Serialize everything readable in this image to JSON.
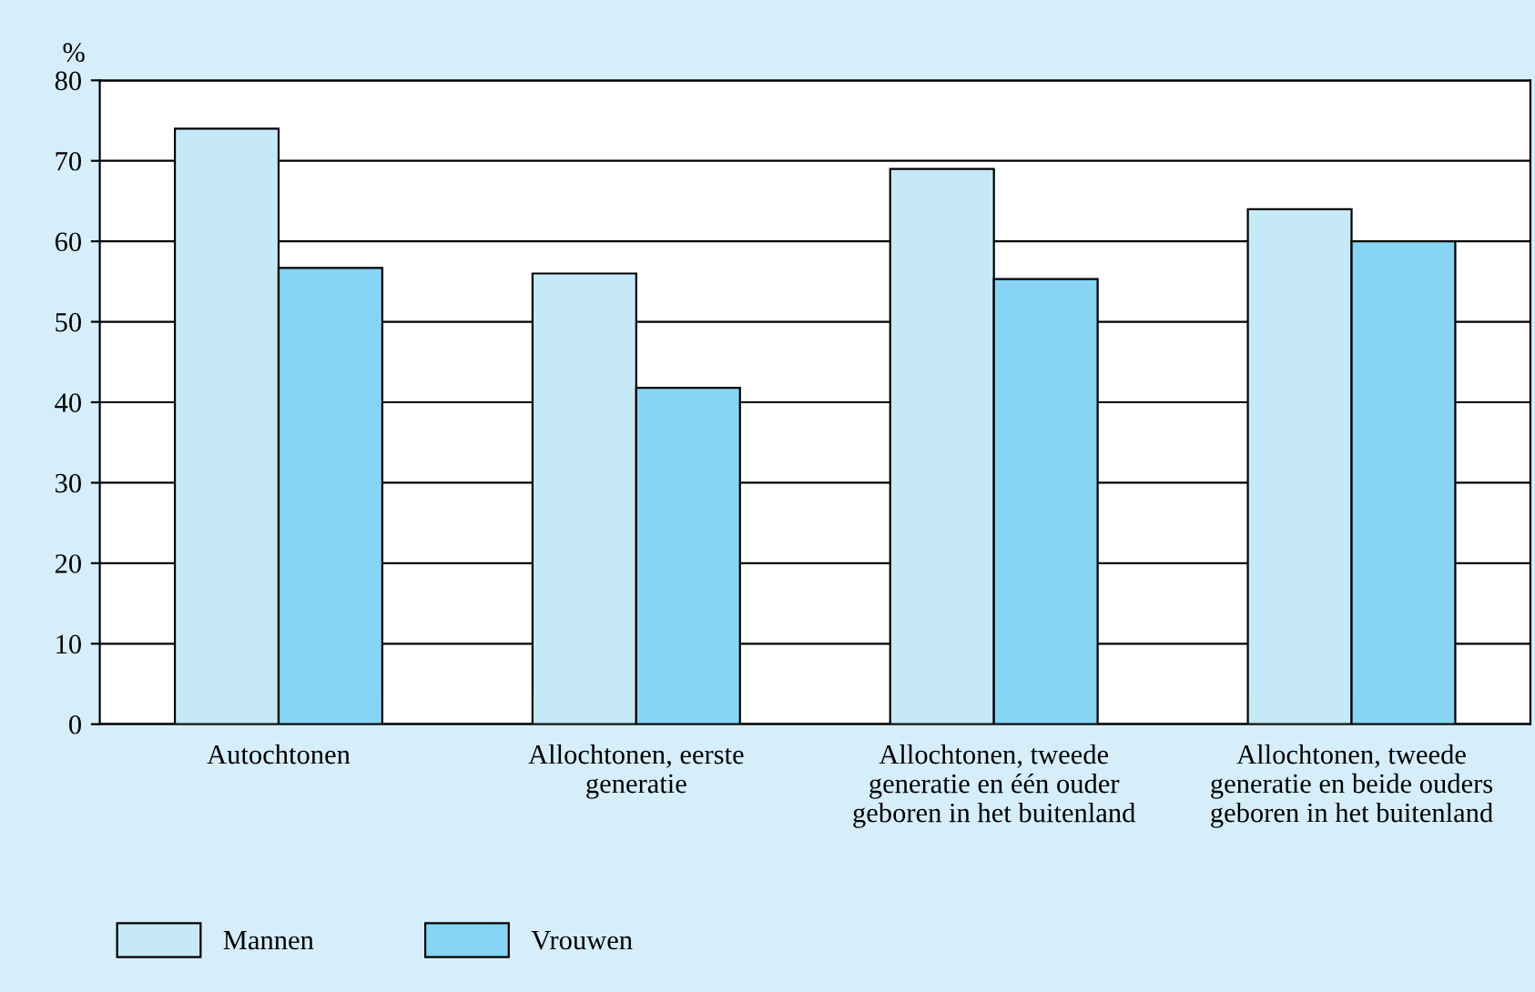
{
  "chart_data": {
    "type": "bar",
    "ylabel": "%",
    "categories": [
      "Autochtonen",
      "Allochtonen, eerste\ngeneratie",
      "Allochtonen, tweede\ngeneratie en één ouder\ngeboren in het buitenland",
      "Allochtonen, tweede\ngeneratie en beide ouders\ngeboren in het buitenland"
    ],
    "series": [
      {
        "name": "Mannen",
        "color": "#c6e9f8",
        "values": [
          74,
          56,
          69,
          64
        ]
      },
      {
        "name": "Vrouwen",
        "color": "#87d4f4",
        "values": [
          56.7,
          41.8,
          55.3,
          60
        ]
      }
    ],
    "ylim": [
      0,
      80
    ],
    "yticks": [
      0,
      10,
      20,
      30,
      40,
      50,
      60,
      70,
      80
    ],
    "grid": "y",
    "legend": "bottom left"
  }
}
